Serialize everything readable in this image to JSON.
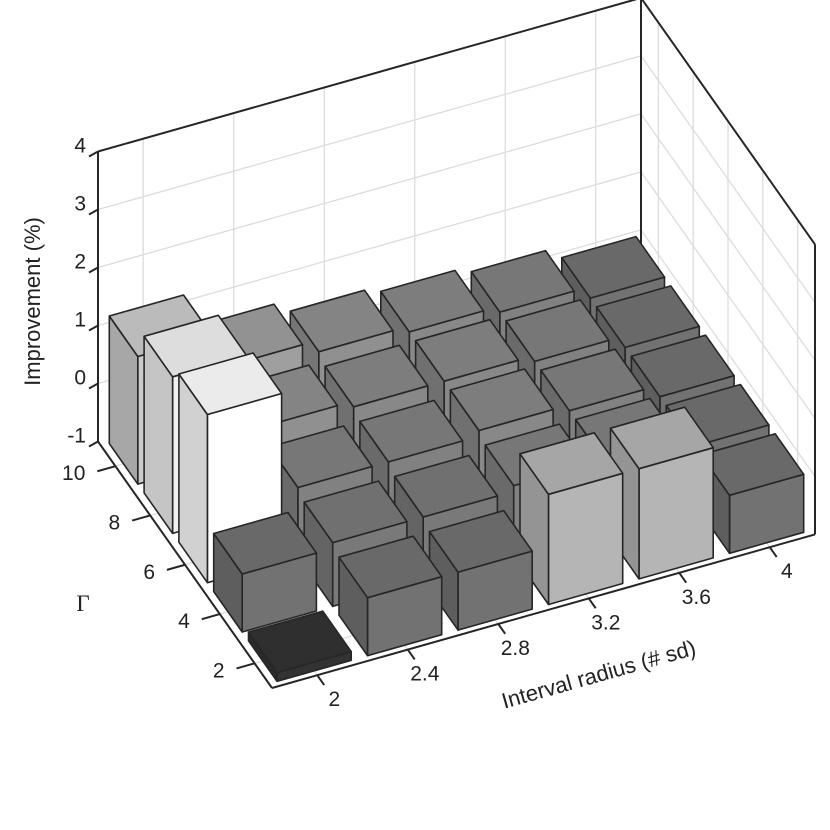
{
  "chart_data": {
    "type": "bar3d",
    "title": "",
    "xlabel": "Interval radius (# sd)",
    "ylabel": "Γ",
    "zlabel": "Improvement (%)",
    "x_categories": [
      "2",
      "2.4",
      "2.8",
      "3.2",
      "3.6",
      "4"
    ],
    "y_categories": [
      "2",
      "4",
      "6",
      "8",
      "10"
    ],
    "z_ticks": [
      "-1",
      "0",
      "1",
      "2",
      "3",
      "4"
    ],
    "zlim": [
      -1,
      4
    ],
    "grid": true,
    "colormap": "gray (darker = lower, lighter = higher)",
    "values": [
      [
        -0.85,
        0.0,
        1.9,
        1.7,
        1.2
      ],
      [
        0.0,
        0.1,
        0.2,
        0.4,
        0.6
      ],
      [
        0.0,
        0.1,
        0.2,
        0.3,
        0.4
      ],
      [
        0.9,
        0.2,
        0.3,
        0.3,
        0.3
      ],
      [
        0.9,
        0.2,
        0.2,
        0.2,
        0.2
      ],
      [
        0.0,
        0.0,
        0.0,
        0.0,
        0.0
      ]
    ]
  }
}
